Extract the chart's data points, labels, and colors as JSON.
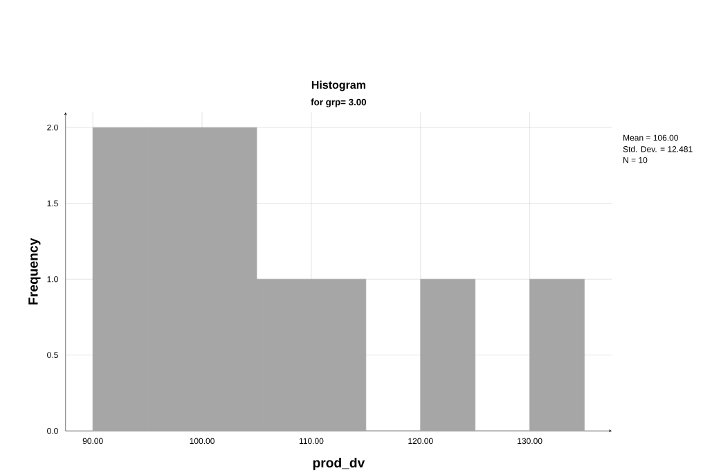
{
  "chart_data": {
    "type": "histogram",
    "title": "Histogram",
    "subtitle": "for grp= 3.00",
    "xlabel": "prod_dv",
    "ylabel": "Frequency",
    "bins": [
      90,
      95,
      100,
      105,
      110,
      115,
      120,
      125,
      130,
      135
    ],
    "values": [
      2,
      2,
      2,
      1,
      1,
      0,
      1,
      0,
      1
    ],
    "color": "#a6a6a6",
    "xlim": [
      87.5,
      137.5
    ],
    "ylim": [
      0,
      2.1
    ],
    "xticks": [
      {
        "value": 90,
        "label": "90.00"
      },
      {
        "value": 100,
        "label": "100.00"
      },
      {
        "value": 110,
        "label": "110.00"
      },
      {
        "value": 120,
        "label": "120.00"
      },
      {
        "value": 130,
        "label": "130.00"
      }
    ],
    "yticks": [
      {
        "value": 0,
        "label": "0.0"
      },
      {
        "value": 0.5,
        "label": "0.5"
      },
      {
        "value": 1,
        "label": "1.0"
      },
      {
        "value": 1.5,
        "label": "1.5"
      },
      {
        "value": 2,
        "label": "2.0"
      }
    ],
    "grid": true,
    "annotations": [
      "Mean = 106.00",
      "Std. Dev. = 12.481",
      "N = 10"
    ]
  }
}
